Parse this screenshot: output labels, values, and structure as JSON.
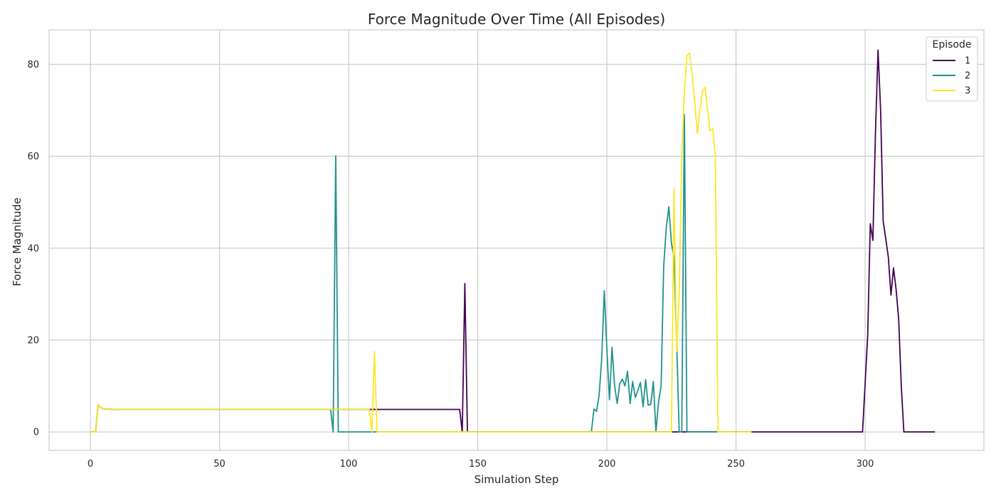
{
  "chart_data": {
    "type": "line",
    "title": "Force Magnitude Over Time (All Episodes)",
    "xlabel": "Simulation Step",
    "ylabel": "Force Magnitude",
    "xlim": [
      -16,
      346
    ],
    "ylim": [
      -4,
      87.5
    ],
    "xticks": [
      0,
      50,
      100,
      150,
      200,
      250,
      300
    ],
    "yticks": [
      0,
      20,
      40,
      60,
      80
    ],
    "grid": true,
    "legend": {
      "title": "Episode",
      "placement": "top-right"
    },
    "series": [
      {
        "name": "1",
        "color": "#440154",
        "points": [
          [
            0,
            0
          ],
          [
            2,
            0
          ],
          [
            3,
            6
          ],
          [
            4,
            5.3
          ],
          [
            5,
            5
          ],
          [
            10,
            4.9
          ],
          [
            143,
            4.9
          ],
          [
            144,
            0
          ],
          [
            145,
            32.3
          ],
          [
            146,
            0
          ],
          [
            226,
            0
          ],
          [
            227,
            0
          ],
          [
            230,
            0
          ],
          [
            231,
            0
          ],
          [
            240,
            0
          ],
          [
            256,
            0
          ],
          [
            299,
            0
          ],
          [
            301,
            21
          ],
          [
            302,
            45.3
          ],
          [
            303,
            41.7
          ],
          [
            304,
            65
          ],
          [
            305,
            83.1
          ],
          [
            306,
            70
          ],
          [
            307,
            45.8
          ],
          [
            308,
            42
          ],
          [
            309,
            38
          ],
          [
            310,
            29.8
          ],
          [
            311,
            35.7
          ],
          [
            312,
            31
          ],
          [
            313,
            24.5
          ],
          [
            314,
            10
          ],
          [
            315,
            0
          ],
          [
            327,
            0
          ]
        ]
      },
      {
        "name": "2",
        "color": "#21918c",
        "points": [
          [
            0,
            0
          ],
          [
            2,
            0
          ],
          [
            3,
            6
          ],
          [
            4,
            5.3
          ],
          [
            5,
            5
          ],
          [
            10,
            4.9
          ],
          [
            93,
            4.9
          ],
          [
            94,
            0
          ],
          [
            95,
            60.1
          ],
          [
            96,
            0
          ],
          [
            194,
            0
          ],
          [
            195,
            5
          ],
          [
            196,
            4.5
          ],
          [
            197,
            8
          ],
          [
            198,
            16
          ],
          [
            199,
            30.7
          ],
          [
            200,
            18
          ],
          [
            201,
            7
          ],
          [
            202,
            18.4
          ],
          [
            203,
            10
          ],
          [
            204,
            6.2
          ],
          [
            205,
            10.5
          ],
          [
            206,
            11.5
          ],
          [
            207,
            10
          ],
          [
            208,
            13.2
          ],
          [
            209,
            6.2
          ],
          [
            210,
            11
          ],
          [
            211,
            7.5
          ],
          [
            212,
            9
          ],
          [
            213,
            10.8
          ],
          [
            214,
            5.5
          ],
          [
            215,
            11.4
          ],
          [
            216,
            5.8
          ],
          [
            217,
            6
          ],
          [
            218,
            11
          ],
          [
            219,
            0
          ],
          [
            220,
            6.5
          ],
          [
            221,
            10
          ],
          [
            222,
            36
          ],
          [
            223,
            44.5
          ],
          [
            224,
            49
          ],
          [
            225,
            41
          ],
          [
            226,
            38
          ],
          [
            227,
            20
          ],
          [
            228,
            0
          ],
          [
            229,
            0
          ],
          [
            230,
            69.1
          ],
          [
            231,
            0
          ],
          [
            243,
            0
          ]
        ]
      },
      {
        "name": "3",
        "color": "#fde725",
        "points": [
          [
            0,
            0
          ],
          [
            2,
            0
          ],
          [
            3,
            6
          ],
          [
            4,
            5.3
          ],
          [
            5,
            5
          ],
          [
            10,
            4.9
          ],
          [
            108,
            4.9
          ],
          [
            109,
            0
          ],
          [
            110,
            17.5
          ],
          [
            111,
            0
          ],
          [
            225,
            0
          ],
          [
            226,
            53
          ],
          [
            227,
            17.5
          ],
          [
            228,
            30
          ],
          [
            229,
            60
          ],
          [
            230,
            74
          ],
          [
            231,
            82
          ],
          [
            232,
            82.4
          ],
          [
            233,
            78
          ],
          [
            234,
            72
          ],
          [
            235,
            65
          ],
          [
            236,
            70
          ],
          [
            237,
            74
          ],
          [
            238,
            75
          ],
          [
            239,
            70
          ],
          [
            240,
            65.5
          ],
          [
            241,
            66
          ],
          [
            242,
            60
          ],
          [
            243,
            0
          ],
          [
            256,
            0
          ]
        ]
      }
    ]
  }
}
